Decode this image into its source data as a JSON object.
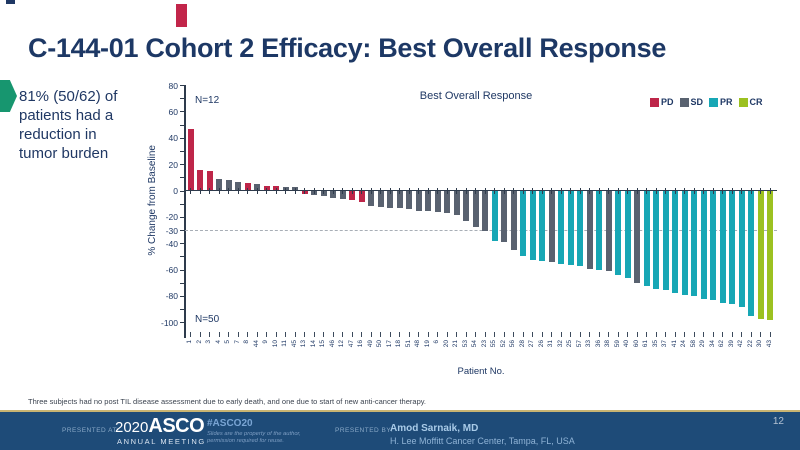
{
  "slide": {
    "title": "C-144-01 Cohort 2 Efficacy: Best Overall Response",
    "callout_text": "81% (50/62) of patients had a reduction in tumor burden",
    "footnote": "Three subjects had no post TIL disease assessment due to early death, and one due to start of new anti-cancer therapy."
  },
  "chart_data": {
    "type": "bar",
    "subtype": "waterfall",
    "title": "Best Overall Response",
    "xlabel": "Patient No.",
    "ylabel": "% Change from Baseline",
    "ylim": [
      -100,
      80
    ],
    "yticks": [
      80,
      60,
      40,
      20,
      0,
      -20,
      -30,
      -40,
      -60,
      -80,
      -100
    ],
    "reference_line": -30,
    "grid": "off",
    "n_top": "N=12",
    "n_bottom": "N=50",
    "legend_position": "top-right",
    "legend": [
      {
        "label": "PD",
        "color": "#be2649"
      },
      {
        "label": "SD",
        "color": "#596270"
      },
      {
        "label": "PR",
        "color": "#17a7b5"
      },
      {
        "label": "CR",
        "color": "#9cc120"
      }
    ],
    "series_colors": {
      "PD": "#be2649",
      "SD": "#596270",
      "PR": "#17a7b5",
      "CR": "#9cc120"
    },
    "patients": [
      {
        "id": "1",
        "value": 47,
        "response": "PD"
      },
      {
        "id": "2",
        "value": 16,
        "response": "PD"
      },
      {
        "id": "3",
        "value": 15,
        "response": "PD"
      },
      {
        "id": "4",
        "value": 9,
        "response": "SD"
      },
      {
        "id": "5",
        "value": 8,
        "response": "SD"
      },
      {
        "id": "7",
        "value": 7,
        "response": "SD"
      },
      {
        "id": "8",
        "value": 6,
        "response": "PD"
      },
      {
        "id": "44",
        "value": 5,
        "response": "SD"
      },
      {
        "id": "9",
        "value": 4,
        "response": "PD"
      },
      {
        "id": "10",
        "value": 4,
        "response": "PD"
      },
      {
        "id": "11",
        "value": 3,
        "response": "SD"
      },
      {
        "id": "45",
        "value": 3,
        "response": "SD"
      },
      {
        "id": "13",
        "value": -2,
        "response": "PD"
      },
      {
        "id": "14",
        "value": -3,
        "response": "SD"
      },
      {
        "id": "15",
        "value": -4,
        "response": "SD"
      },
      {
        "id": "46",
        "value": -5,
        "response": "SD"
      },
      {
        "id": "12",
        "value": -6,
        "response": "SD"
      },
      {
        "id": "47",
        "value": -7,
        "response": "PD"
      },
      {
        "id": "16",
        "value": -8,
        "response": "PD"
      },
      {
        "id": "49",
        "value": -11,
        "response": "SD"
      },
      {
        "id": "50",
        "value": -12,
        "response": "SD"
      },
      {
        "id": "17",
        "value": -13,
        "response": "SD"
      },
      {
        "id": "18",
        "value": -13,
        "response": "SD"
      },
      {
        "id": "51",
        "value": -14,
        "response": "SD"
      },
      {
        "id": "48",
        "value": -15,
        "response": "SD"
      },
      {
        "id": "19",
        "value": -15,
        "response": "SD"
      },
      {
        "id": "6",
        "value": -16,
        "response": "SD"
      },
      {
        "id": "20",
        "value": -17,
        "response": "SD"
      },
      {
        "id": "21",
        "value": -18,
        "response": "SD"
      },
      {
        "id": "53",
        "value": -23,
        "response": "SD"
      },
      {
        "id": "54",
        "value": -27,
        "response": "SD"
      },
      {
        "id": "23",
        "value": -30,
        "response": "SD"
      },
      {
        "id": "55",
        "value": -38,
        "response": "PR"
      },
      {
        "id": "52",
        "value": -39,
        "response": "SD"
      },
      {
        "id": "56",
        "value": -45,
        "response": "SD"
      },
      {
        "id": "28",
        "value": -49,
        "response": "PR"
      },
      {
        "id": "27",
        "value": -52,
        "response": "PR"
      },
      {
        "id": "26",
        "value": -53,
        "response": "PR"
      },
      {
        "id": "31",
        "value": -54,
        "response": "SD"
      },
      {
        "id": "32",
        "value": -55,
        "response": "PR"
      },
      {
        "id": "25",
        "value": -56,
        "response": "PR"
      },
      {
        "id": "57",
        "value": -57,
        "response": "PR"
      },
      {
        "id": "33",
        "value": -59,
        "response": "SD"
      },
      {
        "id": "36",
        "value": -60,
        "response": "PR"
      },
      {
        "id": "38",
        "value": -61,
        "response": "SD"
      },
      {
        "id": "59",
        "value": -64,
        "response": "PR"
      },
      {
        "id": "40",
        "value": -66,
        "response": "PR"
      },
      {
        "id": "60",
        "value": -70,
        "response": "SD"
      },
      {
        "id": "61",
        "value": -72,
        "response": "PR"
      },
      {
        "id": "35",
        "value": -74,
        "response": "PR"
      },
      {
        "id": "37",
        "value": -75,
        "response": "PR"
      },
      {
        "id": "41",
        "value": -77,
        "response": "PR"
      },
      {
        "id": "24",
        "value": -79,
        "response": "PR"
      },
      {
        "id": "58",
        "value": -80,
        "response": "PR"
      },
      {
        "id": "29",
        "value": -82,
        "response": "PR"
      },
      {
        "id": "34",
        "value": -83,
        "response": "PR"
      },
      {
        "id": "62",
        "value": -85,
        "response": "PR"
      },
      {
        "id": "39",
        "value": -86,
        "response": "PR"
      },
      {
        "id": "42",
        "value": -88,
        "response": "PR"
      },
      {
        "id": "22",
        "value": -95,
        "response": "PR"
      },
      {
        "id": "30",
        "value": -97,
        "response": "CR"
      },
      {
        "id": "43",
        "value": -98,
        "response": "CR"
      }
    ]
  },
  "footer": {
    "presented_at_label": "PRESENTED AT:",
    "logo_year": "2020",
    "logo_org": "ASCO",
    "logo_sub": "ANNUAL MEETING",
    "hashtag": "#ASCO20",
    "permission_line1": "Slides are the property of the author,",
    "permission_line2": "permission required for reuse.",
    "presented_by_label": "PRESENTED BY:",
    "presenter_name": "Amod Sarnaik, MD",
    "presenter_affiliation": "H. Lee Moffitt Cancer Center, Tampa, FL, USA",
    "page_number": "12"
  },
  "colors": {
    "title_navy": "#1d3865",
    "callout_green": "#17966f",
    "footer_navy": "#1e4b78",
    "gold_accent": "#c9b472",
    "axis_color": "#2e3b4c",
    "red_artifact": "#c2254a"
  }
}
